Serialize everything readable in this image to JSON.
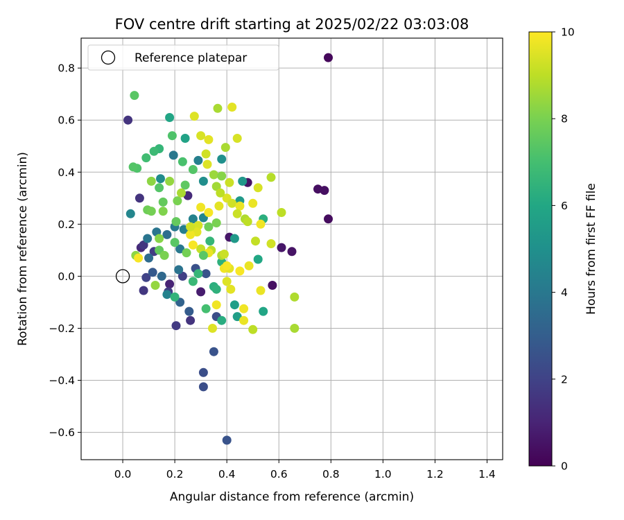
{
  "chart_data": {
    "type": "scatter",
    "title": "FOV centre drift starting at 2025/02/22 03:03:08",
    "xlabel": "Angular distance from reference (arcmin)",
    "ylabel": "Rotation from reference (arcmin)",
    "xlim": [
      -0.16,
      1.46
    ],
    "ylim": [
      -0.705,
      0.915
    ],
    "xticks": [
      0.0,
      0.2,
      0.4,
      0.6,
      0.8,
      1.0,
      1.2,
      1.4
    ],
    "xtick_labels": [
      "0.0",
      "0.2",
      "0.4",
      "0.6",
      "0.8",
      "1.0",
      "1.2",
      "1.4"
    ],
    "yticks": [
      -0.6,
      -0.4,
      -0.2,
      0.0,
      0.2,
      0.4,
      0.6,
      0.8
    ],
    "ytick_labels": [
      "−0.6",
      "−0.4",
      "−0.2",
      "0.0",
      "0.2",
      "0.4",
      "0.6",
      "0.8"
    ],
    "grid": true,
    "legend": {
      "position": "top-left",
      "entries": [
        {
          "label": "Reference platepar",
          "marker": "hollow-circle",
          "x": 0.0,
          "y": 0.0
        }
      ]
    },
    "colorbar": {
      "label": "Hours from first FF file",
      "range": [
        0,
        10
      ],
      "ticks": [
        0,
        2,
        4,
        6,
        8,
        10
      ],
      "tick_labels": [
        "0",
        "2",
        "4",
        "6",
        "8",
        "10"
      ],
      "colormap": "viridis"
    },
    "series": [
      {
        "color_by": "hours",
        "points": [
          {
            "x": 0.79,
            "y": 0.84,
            "c": 0.2
          },
          {
            "x": 0.02,
            "y": 0.6,
            "c": 1.5
          },
          {
            "x": 0.75,
            "y": 0.335,
            "c": 0.4
          },
          {
            "x": 0.775,
            "y": 0.33,
            "c": 0.4
          },
          {
            "x": 0.79,
            "y": 0.22,
            "c": 0.3
          },
          {
            "x": 0.61,
            "y": 0.11,
            "c": 0.6
          },
          {
            "x": 0.65,
            "y": 0.095,
            "c": 0.5
          },
          {
            "x": 0.575,
            "y": -0.035,
            "c": 0.4
          },
          {
            "x": 0.48,
            "y": 0.36,
            "c": 0.5
          },
          {
            "x": 0.41,
            "y": 0.15,
            "c": 0.6
          },
          {
            "x": 0.3,
            "y": -0.06,
            "c": 0.8
          },
          {
            "x": 0.18,
            "y": -0.03,
            "c": 1.0
          },
          {
            "x": 0.07,
            "y": 0.11,
            "c": 1.2
          },
          {
            "x": 0.065,
            "y": 0.3,
            "c": 1.5
          },
          {
            "x": 0.08,
            "y": 0.12,
            "c": 1.6
          },
          {
            "x": 0.25,
            "y": 0.31,
            "c": 1.2
          },
          {
            "x": 0.26,
            "y": -0.17,
            "c": 1.5
          },
          {
            "x": 0.205,
            "y": -0.19,
            "c": 1.7
          },
          {
            "x": 0.08,
            "y": -0.055,
            "c": 1.6
          },
          {
            "x": 0.09,
            "y": -0.005,
            "c": 2.0
          },
          {
            "x": 0.12,
            "y": 0.095,
            "c": 1.8
          },
          {
            "x": 0.175,
            "y": -0.06,
            "c": 1.8
          },
          {
            "x": 0.23,
            "y": 0.0,
            "c": 1.9
          },
          {
            "x": 0.31,
            "y": -0.37,
            "c": 2.4
          },
          {
            "x": 0.31,
            "y": -0.425,
            "c": 2.4
          },
          {
            "x": 0.35,
            "y": -0.29,
            "c": 2.6
          },
          {
            "x": 0.4,
            "y": -0.63,
            "c": 2.6
          },
          {
            "x": 0.36,
            "y": -0.155,
            "c": 2.4
          },
          {
            "x": 0.32,
            "y": 0.01,
            "c": 2.6
          },
          {
            "x": 0.28,
            "y": 0.03,
            "c": 2.5
          },
          {
            "x": 0.115,
            "y": 0.015,
            "c": 2.8
          },
          {
            "x": 0.255,
            "y": -0.135,
            "c": 2.9
          },
          {
            "x": 0.22,
            "y": -0.1,
            "c": 3.2
          },
          {
            "x": 0.15,
            "y": 0.0,
            "c": 3.4
          },
          {
            "x": 0.1,
            "y": 0.07,
            "c": 3.5
          },
          {
            "x": 0.095,
            "y": 0.145,
            "c": 3.9
          },
          {
            "x": 0.13,
            "y": 0.17,
            "c": 3.9
          },
          {
            "x": 0.17,
            "y": 0.16,
            "c": 3.6
          },
          {
            "x": 0.215,
            "y": 0.025,
            "c": 3.8
          },
          {
            "x": 0.22,
            "y": 0.105,
            "c": 4.0
          },
          {
            "x": 0.2,
            "y": 0.19,
            "c": 4.1
          },
          {
            "x": 0.235,
            "y": 0.18,
            "c": 4.3
          },
          {
            "x": 0.195,
            "y": 0.465,
            "c": 4.0
          },
          {
            "x": 0.29,
            "y": 0.445,
            "c": 4.3
          },
          {
            "x": 0.27,
            "y": 0.22,
            "c": 4.4
          },
          {
            "x": 0.31,
            "y": 0.225,
            "c": 4.6
          },
          {
            "x": 0.17,
            "y": -0.07,
            "c": 4.4
          },
          {
            "x": 0.03,
            "y": 0.24,
            "c": 4.6
          },
          {
            "x": 0.145,
            "y": 0.375,
            "c": 4.8
          },
          {
            "x": 0.31,
            "y": 0.365,
            "c": 4.9
          },
          {
            "x": 0.38,
            "y": 0.45,
            "c": 5.0
          },
          {
            "x": 0.46,
            "y": 0.365,
            "c": 5.3
          },
          {
            "x": 0.45,
            "y": 0.29,
            "c": 5.4
          },
          {
            "x": 0.43,
            "y": 0.145,
            "c": 5.4
          },
          {
            "x": 0.43,
            "y": -0.11,
            "c": 5.6
          },
          {
            "x": 0.44,
            "y": -0.155,
            "c": 5.6
          },
          {
            "x": 0.54,
            "y": -0.135,
            "c": 5.9
          },
          {
            "x": 0.52,
            "y": 0.065,
            "c": 6.0
          },
          {
            "x": 0.54,
            "y": 0.22,
            "c": 6.3
          },
          {
            "x": 0.24,
            "y": 0.53,
            "c": 5.8
          },
          {
            "x": 0.18,
            "y": 0.61,
            "c": 5.9
          },
          {
            "x": 0.38,
            "y": -0.17,
            "c": 6.2
          },
          {
            "x": 0.35,
            "y": -0.04,
            "c": 6.3
          },
          {
            "x": 0.36,
            "y": -0.05,
            "c": 6.4
          },
          {
            "x": 0.2,
            "y": -0.08,
            "c": 6.5
          },
          {
            "x": 0.27,
            "y": -0.02,
            "c": 6.7
          },
          {
            "x": 0.38,
            "y": 0.055,
            "c": 6.4
          },
          {
            "x": 0.335,
            "y": 0.135,
            "c": 6.6
          },
          {
            "x": 0.14,
            "y": 0.49,
            "c": 6.6
          },
          {
            "x": 0.12,
            "y": 0.48,
            "c": 6.8
          },
          {
            "x": 0.09,
            "y": 0.455,
            "c": 6.9
          },
          {
            "x": 0.055,
            "y": 0.415,
            "c": 7.2
          },
          {
            "x": 0.04,
            "y": 0.42,
            "c": 7.3
          },
          {
            "x": 0.045,
            "y": 0.695,
            "c": 7.4
          },
          {
            "x": 0.19,
            "y": 0.54,
            "c": 7.2
          },
          {
            "x": 0.23,
            "y": 0.44,
            "c": 7.1
          },
          {
            "x": 0.27,
            "y": 0.41,
            "c": 7.3
          },
          {
            "x": 0.24,
            "y": 0.35,
            "c": 7.5
          },
          {
            "x": 0.14,
            "y": 0.34,
            "c": 7.3
          },
          {
            "x": 0.155,
            "y": 0.285,
            "c": 7.6
          },
          {
            "x": 0.095,
            "y": 0.255,
            "c": 7.8
          },
          {
            "x": 0.11,
            "y": 0.25,
            "c": 7.9
          },
          {
            "x": 0.155,
            "y": 0.25,
            "c": 8.1
          },
          {
            "x": 0.21,
            "y": 0.29,
            "c": 8.0
          },
          {
            "x": 0.205,
            "y": 0.21,
            "c": 7.6
          },
          {
            "x": 0.14,
            "y": 0.145,
            "c": 8.2
          },
          {
            "x": 0.125,
            "y": -0.035,
            "c": 8.4
          },
          {
            "x": 0.05,
            "y": 0.08,
            "c": 8.3
          },
          {
            "x": 0.33,
            "y": 0.19,
            "c": 7.8
          },
          {
            "x": 0.36,
            "y": 0.205,
            "c": 8.0
          },
          {
            "x": 0.35,
            "y": 0.39,
            "c": 8.5
          },
          {
            "x": 0.36,
            "y": 0.345,
            "c": 8.6
          },
          {
            "x": 0.395,
            "y": 0.495,
            "c": 8.7
          },
          {
            "x": 0.57,
            "y": 0.38,
            "c": 8.9
          },
          {
            "x": 0.61,
            "y": 0.245,
            "c": 9.0
          },
          {
            "x": 0.51,
            "y": 0.135,
            "c": 9.1
          },
          {
            "x": 0.57,
            "y": 0.125,
            "c": 9.3
          },
          {
            "x": 0.47,
            "y": 0.22,
            "c": 8.8
          },
          {
            "x": 0.38,
            "y": 0.08,
            "c": 8.8
          },
          {
            "x": 0.39,
            "y": 0.085,
            "c": 9.2
          },
          {
            "x": 0.34,
            "y": 0.1,
            "c": 9.0
          },
          {
            "x": 0.3,
            "y": 0.105,
            "c": 9.1
          },
          {
            "x": 0.29,
            "y": 0.195,
            "c": 9.4
          },
          {
            "x": 0.365,
            "y": 0.645,
            "c": 8.7
          },
          {
            "x": 0.42,
            "y": 0.65,
            "c": 9.6
          },
          {
            "x": 0.275,
            "y": 0.615,
            "c": 9.5
          },
          {
            "x": 0.3,
            "y": 0.54,
            "c": 9.4
          },
          {
            "x": 0.33,
            "y": 0.525,
            "c": 9.6
          },
          {
            "x": 0.44,
            "y": 0.53,
            "c": 9.4
          },
          {
            "x": 0.32,
            "y": 0.47,
            "c": 9.3
          },
          {
            "x": 0.325,
            "y": 0.43,
            "c": 9.5
          },
          {
            "x": 0.41,
            "y": 0.36,
            "c": 9.2
          },
          {
            "x": 0.4,
            "y": 0.3,
            "c": 9.5
          },
          {
            "x": 0.37,
            "y": 0.27,
            "c": 9.6
          },
          {
            "x": 0.42,
            "y": 0.28,
            "c": 9.3
          },
          {
            "x": 0.45,
            "y": 0.27,
            "c": 9.7
          },
          {
            "x": 0.5,
            "y": 0.28,
            "c": 9.7
          },
          {
            "x": 0.52,
            "y": 0.34,
            "c": 9.4
          },
          {
            "x": 0.44,
            "y": 0.24,
            "c": 9.2
          },
          {
            "x": 0.48,
            "y": 0.21,
            "c": 9.0
          },
          {
            "x": 0.53,
            "y": 0.2,
            "c": 9.8
          },
          {
            "x": 0.3,
            "y": 0.265,
            "c": 9.8
          },
          {
            "x": 0.33,
            "y": 0.245,
            "c": 9.9
          },
          {
            "x": 0.285,
            "y": 0.17,
            "c": 9.6
          },
          {
            "x": 0.26,
            "y": 0.16,
            "c": 9.8
          },
          {
            "x": 0.26,
            "y": 0.19,
            "c": 9.3
          },
          {
            "x": 0.27,
            "y": 0.12,
            "c": 9.9
          },
          {
            "x": 0.33,
            "y": 0.09,
            "c": 9.7
          },
          {
            "x": 0.06,
            "y": 0.07,
            "c": 9.9
          },
          {
            "x": 0.39,
            "y": 0.03,
            "c": 9.8
          },
          {
            "x": 0.41,
            "y": 0.03,
            "c": 9.6
          },
          {
            "x": 0.4,
            "y": 0.04,
            "c": 9.9
          },
          {
            "x": 0.45,
            "y": 0.02,
            "c": 9.9
          },
          {
            "x": 0.485,
            "y": 0.04,
            "c": 9.7
          },
          {
            "x": 0.4,
            "y": -0.02,
            "c": 9.5
          },
          {
            "x": 0.415,
            "y": -0.05,
            "c": 9.6
          },
          {
            "x": 0.465,
            "y": -0.125,
            "c": 9.8
          },
          {
            "x": 0.465,
            "y": -0.17,
            "c": 9.7
          },
          {
            "x": 0.36,
            "y": -0.11,
            "c": 9.8
          },
          {
            "x": 0.345,
            "y": -0.2,
            "c": 9.5
          },
          {
            "x": 0.53,
            "y": -0.055,
            "c": 9.7
          },
          {
            "x": 0.5,
            "y": -0.205,
            "c": 9.0
          },
          {
            "x": 0.66,
            "y": -0.08,
            "c": 8.8
          },
          {
            "x": 0.66,
            "y": -0.2,
            "c": 8.7
          },
          {
            "x": 0.245,
            "y": 0.09,
            "c": 7.9
          },
          {
            "x": 0.31,
            "y": 0.08,
            "c": 7.4
          },
          {
            "x": 0.32,
            "y": -0.125,
            "c": 7.0
          },
          {
            "x": 0.29,
            "y": 0.01,
            "c": 6.6
          },
          {
            "x": 0.2,
            "y": 0.13,
            "c": 7.4
          },
          {
            "x": 0.14,
            "y": 0.1,
            "c": 7.6
          },
          {
            "x": 0.16,
            "y": 0.08,
            "c": 8.0
          },
          {
            "x": 0.11,
            "y": 0.365,
            "c": 8.3
          },
          {
            "x": 0.18,
            "y": 0.365,
            "c": 8.4
          },
          {
            "x": 0.225,
            "y": 0.32,
            "c": 8.7
          },
          {
            "x": 0.38,
            "y": 0.385,
            "c": 8.2
          },
          {
            "x": 0.375,
            "y": 0.32,
            "c": 9.0
          }
        ]
      }
    ]
  }
}
